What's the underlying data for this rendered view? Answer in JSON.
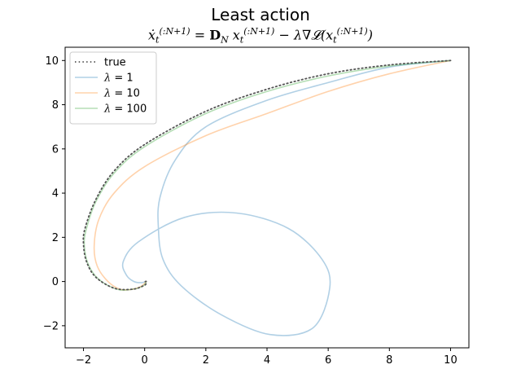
{
  "chart_data": {
    "type": "line",
    "title": "Least action",
    "subtitle": "ẋ_t^(:N+1) = D_N x_t^(:N+1) − λ∇𝓛(x_t^(:N+1))",
    "xlabel": "",
    "ylabel": "",
    "xlim": [
      -2.6,
      10.6
    ],
    "ylim": [
      -3.0,
      10.6
    ],
    "xticks": [
      -2,
      0,
      2,
      4,
      6,
      8,
      10
    ],
    "yticks": [
      -2,
      0,
      2,
      4,
      6,
      8,
      10
    ],
    "grid": false,
    "legend": "top-left",
    "series": [
      {
        "name": "true",
        "color": "#555555",
        "style": "dotted",
        "x": [
          10,
          8,
          6,
          4,
          2,
          0,
          -1,
          -1.6,
          -1.95,
          -2.0,
          -1.9,
          -1.6,
          -1.0,
          -0.4,
          -0.05,
          0.05,
          0.05,
          0.02
        ],
        "y": [
          10,
          9.8,
          9.4,
          8.7,
          7.7,
          6.2,
          5.0,
          3.7,
          2.4,
          1.7,
          0.9,
          0.2,
          -0.3,
          -0.35,
          -0.2,
          -0.1,
          0.0,
          0.0
        ]
      },
      {
        "name": "λ=1",
        "color": "#1f77b4",
        "style": "solid",
        "x": [
          10,
          8,
          6,
          4,
          2,
          1,
          0.5,
          0.45,
          0.6,
          1.2,
          2.5,
          4.1,
          5.5,
          6.05,
          5.8,
          4.7,
          3.0,
          1.3,
          -0.2,
          -0.7,
          -0.6,
          -0.35,
          -0.1,
          0.05
        ],
        "y": [
          10,
          9.7,
          9.0,
          8.2,
          7.0,
          5.5,
          3.8,
          2.4,
          1.0,
          -0.2,
          -1.5,
          -2.4,
          -2.1,
          -0.3,
          1.0,
          2.4,
          3.1,
          2.9,
          1.8,
          0.9,
          0.3,
          0.0,
          -0.05,
          0.0
        ]
      },
      {
        "name": "λ=10",
        "color": "#ff7f0e",
        "style": "solid",
        "x": [
          10,
          8,
          6,
          4,
          2,
          0,
          -1,
          -1.5,
          -1.65,
          -1.55,
          -1.2,
          -0.8,
          -0.4,
          -0.1,
          0.05
        ],
        "y": [
          10,
          9.4,
          8.6,
          7.6,
          6.6,
          5.2,
          4.0,
          2.8,
          1.6,
          0.7,
          0.0,
          -0.35,
          -0.35,
          -0.2,
          0.0
        ]
      },
      {
        "name": "λ=100",
        "color": "#2ca02c",
        "style": "solid",
        "x": [
          10,
          8,
          6,
          4,
          2,
          0,
          -1,
          -1.6,
          -1.92,
          -1.97,
          -1.85,
          -1.5,
          -0.9,
          -0.4,
          -0.05,
          0.05
        ],
        "y": [
          10,
          9.75,
          9.3,
          8.6,
          7.6,
          6.1,
          4.9,
          3.6,
          2.3,
          1.6,
          0.8,
          0.1,
          -0.35,
          -0.35,
          -0.2,
          0.0
        ]
      }
    ]
  }
}
